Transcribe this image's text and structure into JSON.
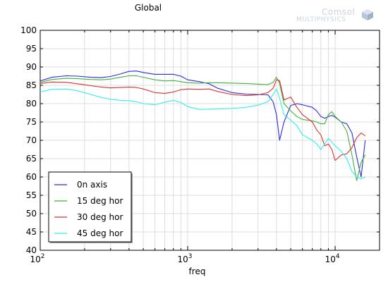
{
  "chart_data": {
    "type": "line",
    "title": "Global",
    "xlabel": "freq",
    "ylabel": "",
    "xscale": "log",
    "xlim": [
      100,
      20000
    ],
    "ylim": [
      40,
      100
    ],
    "yticks": [
      40,
      45,
      50,
      55,
      60,
      65,
      70,
      75,
      80,
      85,
      90,
      95,
      100
    ],
    "xticks": [
      {
        "value": 100,
        "base": "10",
        "exp": "2"
      },
      {
        "value": 1000,
        "base": "10",
        "exp": "3"
      },
      {
        "value": 10000,
        "base": "10",
        "exp": "4"
      }
    ],
    "grid": true,
    "legend_position": "bottom-left",
    "series": [
      {
        "name": "0n axis",
        "color": "#2a2ae0",
        "x": [
          100,
          120,
          150,
          180,
          220,
          260,
          300,
          350,
          400,
          450,
          500,
          600,
          700,
          800,
          900,
          1000,
          1200,
          1400,
          1600,
          2000,
          2500,
          3000,
          3500,
          3800,
          4000,
          4200,
          4500,
          5000,
          5500,
          6000,
          7000,
          7500,
          8000,
          8500,
          9000,
          9500,
          10000,
          11000,
          12000,
          13000,
          14000,
          15000,
          16000
        ],
        "y": [
          86.2,
          87.2,
          87.6,
          87.5,
          87.2,
          87.1,
          87.4,
          88.1,
          88.8,
          88.9,
          88.5,
          88.0,
          88.0,
          88.0,
          87.5,
          86.5,
          86.0,
          85.4,
          84.2,
          83.0,
          82.6,
          82.5,
          82.4,
          80.5,
          77.0,
          70.0,
          75.0,
          79.5,
          80.0,
          79.7,
          79.0,
          78.0,
          76.5,
          76.0,
          76.5,
          76.8,
          76.3,
          75.0,
          74.5,
          72.0,
          65.5,
          60.0,
          70.0
        ]
      },
      {
        "name": "15 deg hor",
        "color": "#3cb43c",
        "x": [
          100,
          120,
          150,
          180,
          220,
          260,
          300,
          350,
          400,
          450,
          500,
          600,
          700,
          800,
          900,
          1000,
          1200,
          1400,
          1600,
          2000,
          2500,
          3000,
          3500,
          3800,
          4000,
          4200,
          4500,
          5000,
          5500,
          6000,
          7000,
          7500,
          8000,
          8500,
          9000,
          9500,
          10000,
          11000,
          12000,
          13000,
          14000,
          15000,
          16000
        ],
        "y": [
          85.8,
          86.6,
          86.9,
          86.8,
          86.6,
          86.5,
          86.7,
          87.2,
          87.6,
          87.6,
          87.2,
          86.5,
          86.2,
          86.3,
          86.0,
          85.7,
          85.6,
          85.7,
          85.7,
          85.6,
          85.5,
          85.3,
          85.2,
          85.8,
          87.2,
          85.5,
          80.0,
          78.0,
          76.5,
          75.7,
          75.3,
          75.0,
          74.5,
          74.5,
          77.0,
          77.8,
          76.5,
          75.0,
          72.5,
          66.0,
          59.0,
          64.0,
          66.0
        ]
      },
      {
        "name": "30 deg hor",
        "color": "#e03030",
        "x": [
          100,
          120,
          150,
          180,
          220,
          260,
          300,
          350,
          400,
          450,
          500,
          600,
          700,
          800,
          900,
          1000,
          1200,
          1400,
          1600,
          2000,
          2500,
          3000,
          3500,
          3800,
          4000,
          4200,
          4500,
          5000,
          5500,
          6000,
          7000,
          7500,
          8000,
          8500,
          9000,
          9500,
          10000,
          11000,
          12000,
          13000,
          14000,
          15000,
          16000
        ],
        "y": [
          85.5,
          85.9,
          85.8,
          85.4,
          84.9,
          84.5,
          84.3,
          84.4,
          84.5,
          84.4,
          84.0,
          83.0,
          82.8,
          83.2,
          83.8,
          84.0,
          83.9,
          84.0,
          83.3,
          82.5,
          82.2,
          82.4,
          83.0,
          84.2,
          86.5,
          86.3,
          81.0,
          81.8,
          79.0,
          77.0,
          75.0,
          72.8,
          71.5,
          68.5,
          69.0,
          67.5,
          64.5,
          66.0,
          66.3,
          68.0,
          70.7,
          72.0,
          71.2
        ]
      },
      {
        "name": "45 deg hor",
        "color": "#30f0f0",
        "x": [
          100,
          120,
          150,
          180,
          220,
          260,
          300,
          350,
          400,
          450,
          500,
          600,
          700,
          800,
          900,
          1000,
          1200,
          1400,
          1600,
          2000,
          2500,
          3000,
          3500,
          3800,
          4000,
          4200,
          4500,
          5000,
          5500,
          6000,
          7000,
          7500,
          8000,
          8500,
          9000,
          9500,
          10000,
          11000,
          12000,
          13000,
          14000,
          15000,
          16000
        ],
        "y": [
          83.2,
          83.9,
          84.0,
          83.5,
          82.5,
          81.7,
          81.2,
          80.9,
          80.8,
          80.5,
          80.0,
          79.7,
          80.4,
          80.9,
          80.3,
          79.2,
          78.4,
          78.5,
          78.6,
          78.7,
          79.0,
          79.6,
          80.5,
          82.5,
          84.0,
          81.5,
          77.0,
          75.5,
          74.0,
          71.5,
          70.0,
          69.0,
          67.5,
          69.0,
          70.5,
          69.5,
          68.5,
          67.0,
          65.0,
          61.5,
          60.0,
          59.5,
          60.0
        ]
      }
    ]
  },
  "logo": {
    "line1": "Comsol",
    "line2": "MULTIPHYSICS"
  }
}
